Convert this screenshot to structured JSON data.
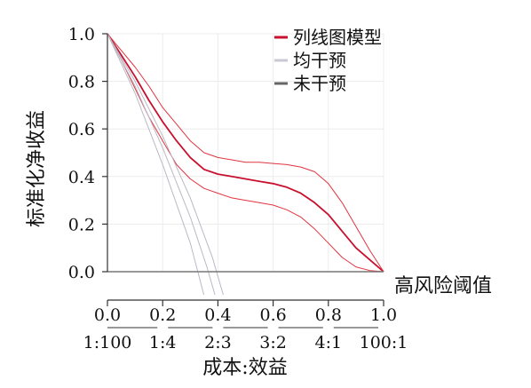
{
  "chart_data": {
    "type": "line",
    "title": "",
    "ylabel": "标准化净收益",
    "xlabel": "高风险阈值",
    "cost_benefit_label": "成本:效益",
    "xlim": [
      0,
      1
    ],
    "ylim": [
      0,
      1
    ],
    "x_ticks": [
      "0.0",
      "0.2",
      "0.4",
      "0.6",
      "0.8",
      "1.0"
    ],
    "y_ticks": [
      "0.0",
      "0.2",
      "0.4",
      "0.6",
      "0.8",
      "1.0"
    ],
    "cost_benefit_ticks": [
      "1:100",
      "1:4",
      "2:3",
      "3:2",
      "4:1",
      "100:1"
    ],
    "grid": true,
    "legend_position": "top-right",
    "series": [
      {
        "name": "列线图模型",
        "color": "#c8102e",
        "x": [
          0.0,
          0.05,
          0.1,
          0.15,
          0.2,
          0.25,
          0.3,
          0.35,
          0.4,
          0.45,
          0.5,
          0.55,
          0.6,
          0.65,
          0.7,
          0.75,
          0.8,
          0.85,
          0.9,
          0.93,
          0.96,
          1.0
        ],
        "y": [
          1.0,
          0.91,
          0.82,
          0.72,
          0.63,
          0.55,
          0.48,
          0.43,
          0.41,
          0.4,
          0.39,
          0.38,
          0.37,
          0.355,
          0.33,
          0.29,
          0.24,
          0.17,
          0.1,
          0.07,
          0.04,
          0.0
        ]
      },
      {
        "name": "upper-bound",
        "color": "#e0343f",
        "x": [
          0.0,
          0.05,
          0.1,
          0.15,
          0.2,
          0.25,
          0.3,
          0.35,
          0.4,
          0.45,
          0.5,
          0.55,
          0.6,
          0.65,
          0.7,
          0.75,
          0.8,
          0.85,
          0.9,
          0.95,
          1.0
        ],
        "y": [
          1.0,
          0.93,
          0.86,
          0.78,
          0.69,
          0.62,
          0.55,
          0.5,
          0.48,
          0.47,
          0.46,
          0.46,
          0.455,
          0.45,
          0.44,
          0.42,
          0.37,
          0.29,
          0.19,
          0.09,
          0.0
        ]
      },
      {
        "name": "lower-bound",
        "color": "#e0343f",
        "x": [
          0.0,
          0.05,
          0.1,
          0.15,
          0.2,
          0.25,
          0.3,
          0.35,
          0.4,
          0.45,
          0.5,
          0.55,
          0.6,
          0.65,
          0.7,
          0.75,
          0.8,
          0.85,
          0.9,
          0.95,
          1.0
        ],
        "y": [
          1.0,
          0.89,
          0.77,
          0.65,
          0.55,
          0.45,
          0.39,
          0.35,
          0.33,
          0.31,
          0.3,
          0.29,
          0.28,
          0.26,
          0.23,
          0.18,
          0.12,
          0.06,
          0.02,
          0.005,
          0.0
        ]
      },
      {
        "name": "均干预",
        "color": "#b9b9c6",
        "x": [
          0.0,
          0.1,
          0.2,
          0.3,
          0.35
        ],
        "y": [
          1.0,
          0.75,
          0.45,
          0.12,
          -0.1
        ]
      },
      {
        "name": "均干预-2",
        "color": "#b9b9c6",
        "x": [
          0.0,
          0.1,
          0.2,
          0.3,
          0.36,
          0.39
        ],
        "y": [
          1.0,
          0.78,
          0.52,
          0.23,
          0.02,
          -0.1
        ]
      },
      {
        "name": "均干预-3",
        "color": "#b9b9c6",
        "x": [
          0.0,
          0.1,
          0.2,
          0.3,
          0.38,
          0.42
        ],
        "y": [
          1.0,
          0.8,
          0.57,
          0.31,
          0.06,
          -0.1
        ]
      },
      {
        "name": "未干预",
        "color": "#777777",
        "x": [
          0.0,
          1.0
        ],
        "y": [
          0.0,
          0.0
        ]
      }
    ],
    "legend": [
      {
        "label": "列线图模型",
        "color": "#c8102e"
      },
      {
        "label": "均干预",
        "color": "#c9c9d4"
      },
      {
        "label": "未干预",
        "color": "#666666"
      }
    ]
  }
}
